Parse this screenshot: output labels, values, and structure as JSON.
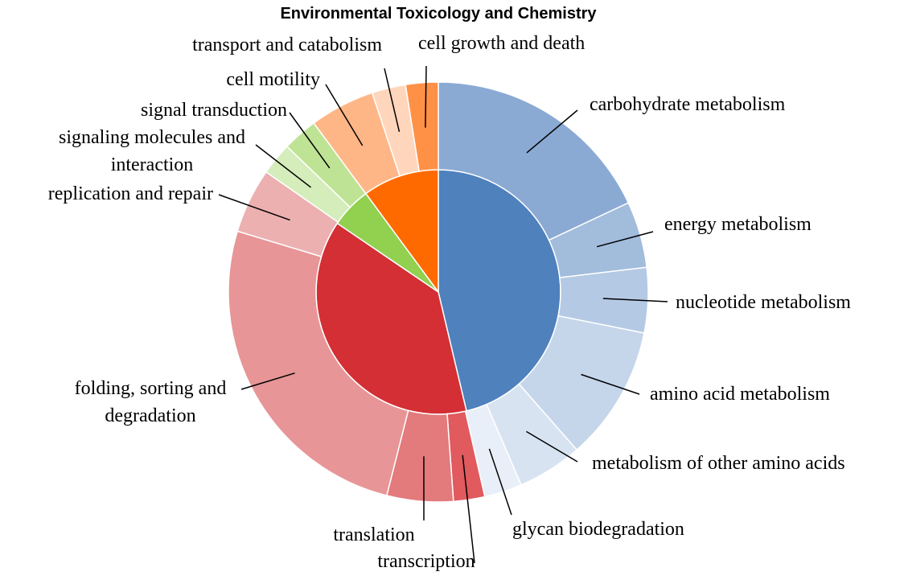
{
  "chart_data": {
    "type": "sunburst",
    "title": "Environmental Toxicology and Chemistry",
    "inner": {
      "values": [
        46.3,
        38.2,
        5.4,
        10.1
      ],
      "colors": [
        "#4f81bd",
        "#d32f34",
        "#92d050",
        "#ff6a00"
      ]
    },
    "outer": {
      "categories": [
        "carbohydrate metabolism",
        "energy metabolism",
        "nucleotide metabolism",
        "amino acid metabolism",
        "metabolism of other amino acids",
        "glycan biodegradation",
        "transcription",
        "translation",
        "folding, sorting and degradation",
        "replication and repair",
        "signaling molecules and interaction",
        "signal transduction",
        "cell motility",
        "transport and catabolism",
        "cell growth and death"
      ],
      "values": [
        18.0,
        5.1,
        5.0,
        10.4,
        5.0,
        2.9,
        2.4,
        5.1,
        25.7,
        5.0,
        2.5,
        2.7,
        5.0,
        2.6,
        2.5
      ],
      "colors": [
        "#8aaad4",
        "#a2bcdc",
        "#b4c9e4",
        "#c5d6eb",
        "#d8e3f2",
        "#e9eff8",
        "#e05a5e",
        "#e37a7c",
        "#e79597",
        "#ecb0b1",
        "#d4edbb",
        "#bfe394",
        "#ffb686",
        "#ffd6bc",
        "#ff9146"
      ]
    }
  }
}
